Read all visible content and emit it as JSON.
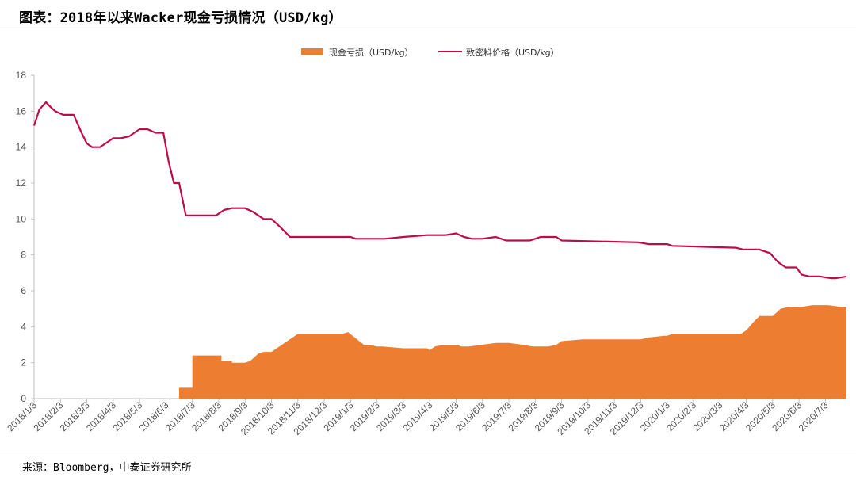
{
  "page": {
    "title": "图表：2018年以来Wacker现金亏损情况（USD/kg）",
    "source": "来源：Bloomberg，中泰证券研究所"
  },
  "colors": {
    "loss": "#ED7D31",
    "price": "#C00C46",
    "axis": "#bfbfbf"
  },
  "chart_data": {
    "type": "line",
    "title": "图表：2018年以来Wacker现金亏损情况（USD/kg）",
    "legend": [
      "现金亏损（USD/kg）",
      "致密料价格（USD/kg）"
    ],
    "legend_position": "top-center",
    "grid": false,
    "ylim": [
      0,
      18
    ],
    "y_ticks": [
      "0",
      "2",
      "4",
      "6",
      "8",
      "10",
      "12",
      "14",
      "16",
      "18"
    ],
    "x_ticks": [
      "2018/1/3",
      "2018/2/3",
      "2018/3/3",
      "2018/4/3",
      "2018/5/3",
      "2018/6/3",
      "2018/7/3",
      "2018/8/3",
      "2018/9/3",
      "2018/10/3",
      "2018/11/3",
      "2018/12/3",
      "2019/1/3",
      "2019/2/3",
      "2019/3/3",
      "2019/4/3",
      "2019/5/3",
      "2019/6/3",
      "2019/7/3",
      "2019/8/3",
      "2019/9/3",
      "2019/10/3",
      "2019/11/3",
      "2019/12/3",
      "2020/1/3",
      "2020/2/3",
      "2020/3/3",
      "2020/4/3",
      "2020/5/3",
      "2020/6/3",
      "2020/7/3"
    ],
    "series": [
      {
        "name": "现金亏损（USD/kg）",
        "kind": "area",
        "x": [
          5.5,
          5.5,
          5.75,
          5.75,
          6.0,
          6.0,
          6.9,
          6.9,
          7.1,
          7.1,
          7.5,
          7.5,
          7.7,
          8.0,
          8.2,
          8.5,
          8.7,
          9.0,
          9.2,
          10.0,
          10.5,
          11.5,
          11.7,
          11.9,
          11.9,
          12.5,
          12.7,
          13.0,
          13.2,
          14.0,
          14.9,
          15.0,
          15.2,
          15.5,
          16.0,
          16.2,
          16.5,
          17.5,
          17.9,
          18.0,
          18.5,
          18.9,
          19.1,
          19.3,
          19.5,
          19.8,
          20.0,
          20.8,
          23.0,
          23.3,
          23.9,
          24.0,
          24.2,
          26.8,
          27.0,
          27.3,
          27.5,
          27.9,
          28.0,
          28.3,
          28.6,
          29.1,
          29.5,
          30.0,
          30.1,
          30.6,
          30.8
        ],
        "y": [
          0,
          0.6,
          0.6,
          0.6,
          0.6,
          2.4,
          2.4,
          2.4,
          2.4,
          2.1,
          2.1,
          2.0,
          2.0,
          2.0,
          2.1,
          2.5,
          2.6,
          2.6,
          2.8,
          3.6,
          3.6,
          3.6,
          3.6,
          3.7,
          3.7,
          3.0,
          3.0,
          2.9,
          2.9,
          2.8,
          2.8,
          2.7,
          2.9,
          3.0,
          3.0,
          2.9,
          2.9,
          3.1,
          3.1,
          3.1,
          3.0,
          2.9,
          2.9,
          2.9,
          2.9,
          3.0,
          3.2,
          3.3,
          3.3,
          3.4,
          3.5,
          3.5,
          3.6,
          3.6,
          3.8,
          4.3,
          4.6,
          4.6,
          4.6,
          5.0,
          5.1,
          5.1,
          5.2,
          5.2,
          5.2,
          5.1,
          5.1
        ]
      },
      {
        "name": "致密料价格（USD/kg）",
        "kind": "line",
        "x": [
          0.0,
          0.2,
          0.45,
          0.65,
          0.8,
          1.1,
          1.5,
          1.8,
          2.0,
          2.2,
          2.5,
          2.8,
          3.0,
          3.3,
          3.6,
          4.0,
          4.3,
          4.6,
          4.9,
          5.1,
          5.3,
          5.5,
          5.75,
          5.85,
          6.5,
          6.9,
          7.2,
          7.5,
          8.0,
          8.3,
          8.7,
          9.0,
          9.3,
          9.5,
          9.7,
          9.9,
          10.3,
          12.0,
          12.2,
          12.9,
          13.3,
          14.0,
          14.9,
          15.1,
          15.3,
          15.6,
          16.0,
          16.3,
          16.6,
          17.0,
          17.5,
          17.9,
          18.3,
          18.8,
          19.0,
          19.2,
          19.8,
          20.0,
          22.9,
          23.3,
          24.0,
          24.2,
          26.6,
          26.9,
          27.2,
          27.5,
          27.9,
          28.2,
          28.5,
          28.9,
          29.1,
          29.4,
          29.8,
          30.2,
          30.4,
          30.8
        ],
        "y": [
          15.2,
          16.1,
          16.5,
          16.2,
          16.0,
          15.8,
          15.8,
          14.8,
          14.2,
          14.0,
          14.0,
          14.3,
          14.5,
          14.5,
          14.6,
          15.0,
          15.0,
          14.8,
          14.8,
          13.2,
          12.0,
          12.0,
          10.2,
          10.2,
          10.2,
          10.2,
          10.5,
          10.6,
          10.6,
          10.4,
          10.0,
          10.0,
          9.6,
          9.3,
          9.0,
          9.0,
          9.0,
          9.0,
          8.9,
          8.9,
          8.9,
          9.0,
          9.1,
          9.1,
          9.1,
          9.1,
          9.2,
          9.0,
          8.9,
          8.9,
          9.0,
          8.8,
          8.8,
          8.8,
          8.9,
          9.0,
          9.0,
          8.8,
          8.7,
          8.6,
          8.6,
          8.5,
          8.4,
          8.3,
          8.3,
          8.3,
          8.1,
          7.6,
          7.3,
          7.3,
          6.9,
          6.8,
          6.8,
          6.7,
          6.7,
          6.8
        ]
      }
    ]
  }
}
